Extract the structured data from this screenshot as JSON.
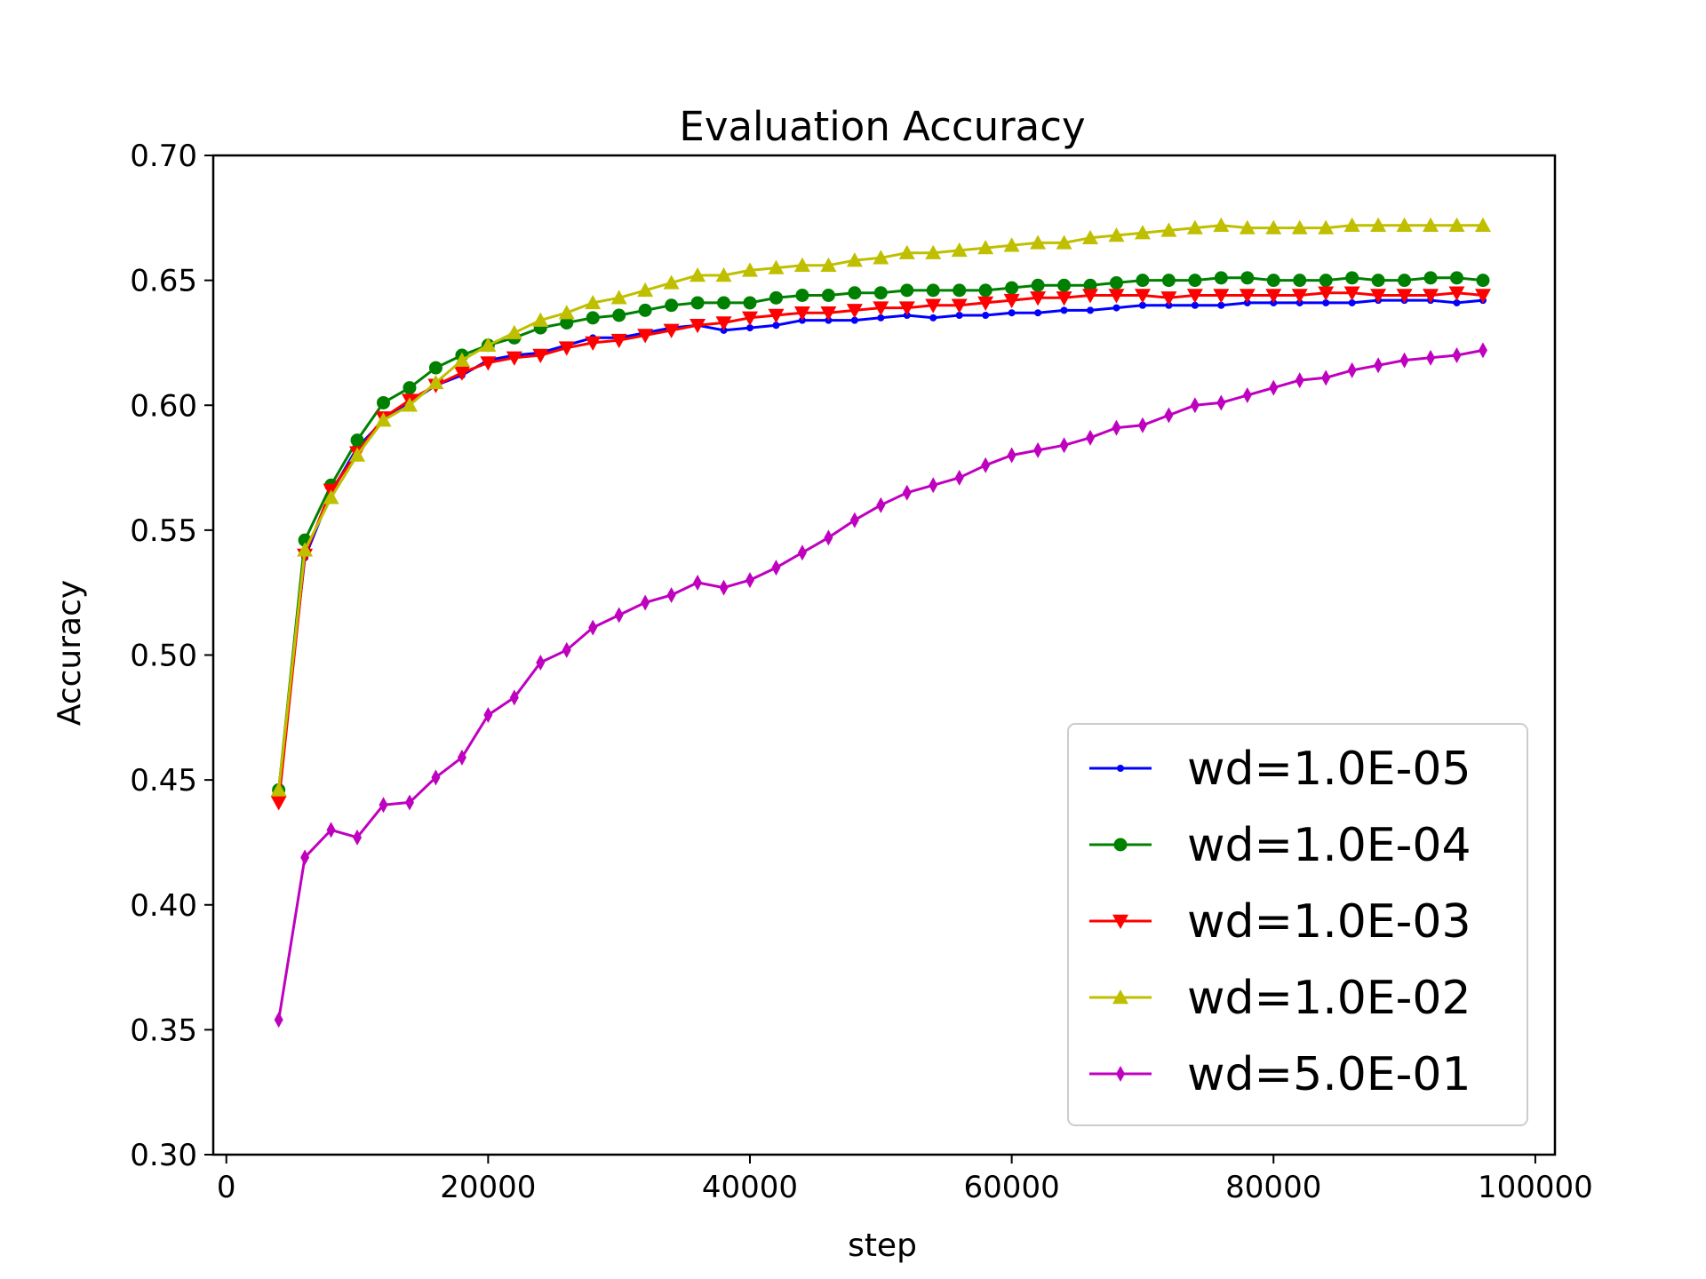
{
  "chart_data": {
    "type": "line",
    "title": "Evaluation Accuracy",
    "xlabel": "step",
    "ylabel": "Accuracy",
    "xlim": [
      -1000,
      101500
    ],
    "ylim": [
      0.3,
      0.7
    ],
    "xticks": [
      0,
      20000,
      40000,
      60000,
      80000,
      100000
    ],
    "xtick_labels": [
      "0",
      "20000",
      "40000",
      "60000",
      "80000",
      "100000"
    ],
    "yticks": [
      0.3,
      0.35,
      0.4,
      0.45,
      0.5,
      0.55,
      0.6,
      0.65,
      0.7
    ],
    "ytick_labels": [
      "0.30",
      "0.35",
      "0.40",
      "0.45",
      "0.50",
      "0.55",
      "0.60",
      "0.65",
      "0.70"
    ],
    "grid": false,
    "legend_position": "lower-right",
    "x": [
      4000,
      6000,
      8000,
      10000,
      12000,
      14000,
      16000,
      18000,
      20000,
      22000,
      24000,
      26000,
      28000,
      30000,
      32000,
      34000,
      36000,
      38000,
      40000,
      42000,
      44000,
      46000,
      48000,
      50000,
      52000,
      54000,
      56000,
      58000,
      60000,
      62000,
      64000,
      66000,
      68000,
      70000,
      72000,
      74000,
      76000,
      78000,
      80000,
      82000,
      84000,
      86000,
      88000,
      90000,
      92000,
      94000,
      96000
    ],
    "series": [
      {
        "name": "wd=1.0E-05",
        "color": "#0000ff",
        "marker": "point",
        "values": [
          0.446,
          0.539,
          0.565,
          0.583,
          0.594,
          0.601,
          0.608,
          0.612,
          0.618,
          0.62,
          0.621,
          0.624,
          0.627,
          0.627,
          0.629,
          0.631,
          0.632,
          0.63,
          0.631,
          0.632,
          0.634,
          0.634,
          0.634,
          0.635,
          0.636,
          0.635,
          0.636,
          0.636,
          0.637,
          0.637,
          0.638,
          0.638,
          0.639,
          0.64,
          0.64,
          0.64,
          0.64,
          0.641,
          0.641,
          0.641,
          0.641,
          0.641,
          0.642,
          0.642,
          0.642,
          0.641,
          0.642
        ]
      },
      {
        "name": "wd=1.0E-04",
        "color": "#008000",
        "marker": "circle",
        "values": [
          0.446,
          0.546,
          0.568,
          0.586,
          0.601,
          0.607,
          0.615,
          0.62,
          0.624,
          0.627,
          0.631,
          0.633,
          0.635,
          0.636,
          0.638,
          0.64,
          0.641,
          0.641,
          0.641,
          0.643,
          0.644,
          0.644,
          0.645,
          0.645,
          0.646,
          0.646,
          0.646,
          0.646,
          0.647,
          0.648,
          0.648,
          0.648,
          0.649,
          0.65,
          0.65,
          0.65,
          0.651,
          0.651,
          0.65,
          0.65,
          0.65,
          0.651,
          0.65,
          0.65,
          0.651,
          0.651,
          0.65
        ]
      },
      {
        "name": "wd=1.0E-03",
        "color": "#ff0000",
        "marker": "triangle-down",
        "values": [
          0.441,
          0.54,
          0.566,
          0.581,
          0.595,
          0.602,
          0.608,
          0.613,
          0.617,
          0.619,
          0.62,
          0.623,
          0.625,
          0.626,
          0.628,
          0.63,
          0.632,
          0.633,
          0.635,
          0.636,
          0.637,
          0.637,
          0.638,
          0.639,
          0.639,
          0.64,
          0.64,
          0.641,
          0.642,
          0.643,
          0.643,
          0.644,
          0.644,
          0.644,
          0.643,
          0.644,
          0.644,
          0.644,
          0.644,
          0.644,
          0.645,
          0.645,
          0.644,
          0.644,
          0.644,
          0.645,
          0.644
        ]
      },
      {
        "name": "wd=1.0E-02",
        "color": "#bfbf00",
        "marker": "triangle-up",
        "values": [
          0.446,
          0.542,
          0.563,
          0.58,
          0.594,
          0.6,
          0.609,
          0.618,
          0.624,
          0.629,
          0.634,
          0.637,
          0.641,
          0.643,
          0.646,
          0.649,
          0.652,
          0.652,
          0.654,
          0.655,
          0.656,
          0.656,
          0.658,
          0.659,
          0.661,
          0.661,
          0.662,
          0.663,
          0.664,
          0.665,
          0.665,
          0.667,
          0.668,
          0.669,
          0.67,
          0.671,
          0.672,
          0.671,
          0.671,
          0.671,
          0.671,
          0.672,
          0.672,
          0.672,
          0.672,
          0.672,
          0.672
        ]
      },
      {
        "name": "wd=5.0E-01",
        "color": "#bf00bf",
        "marker": "thin-diamond",
        "values": [
          0.354,
          0.419,
          0.43,
          0.427,
          0.44,
          0.441,
          0.451,
          0.459,
          0.476,
          0.483,
          0.497,
          0.502,
          0.511,
          0.516,
          0.521,
          0.524,
          0.529,
          0.527,
          0.53,
          0.535,
          0.541,
          0.547,
          0.554,
          0.56,
          0.565,
          0.568,
          0.571,
          0.576,
          0.58,
          0.582,
          0.584,
          0.587,
          0.591,
          0.592,
          0.596,
          0.6,
          0.601,
          0.604,
          0.607,
          0.61,
          0.611,
          0.614,
          0.616,
          0.618,
          0.619,
          0.62,
          0.622
        ]
      }
    ]
  }
}
